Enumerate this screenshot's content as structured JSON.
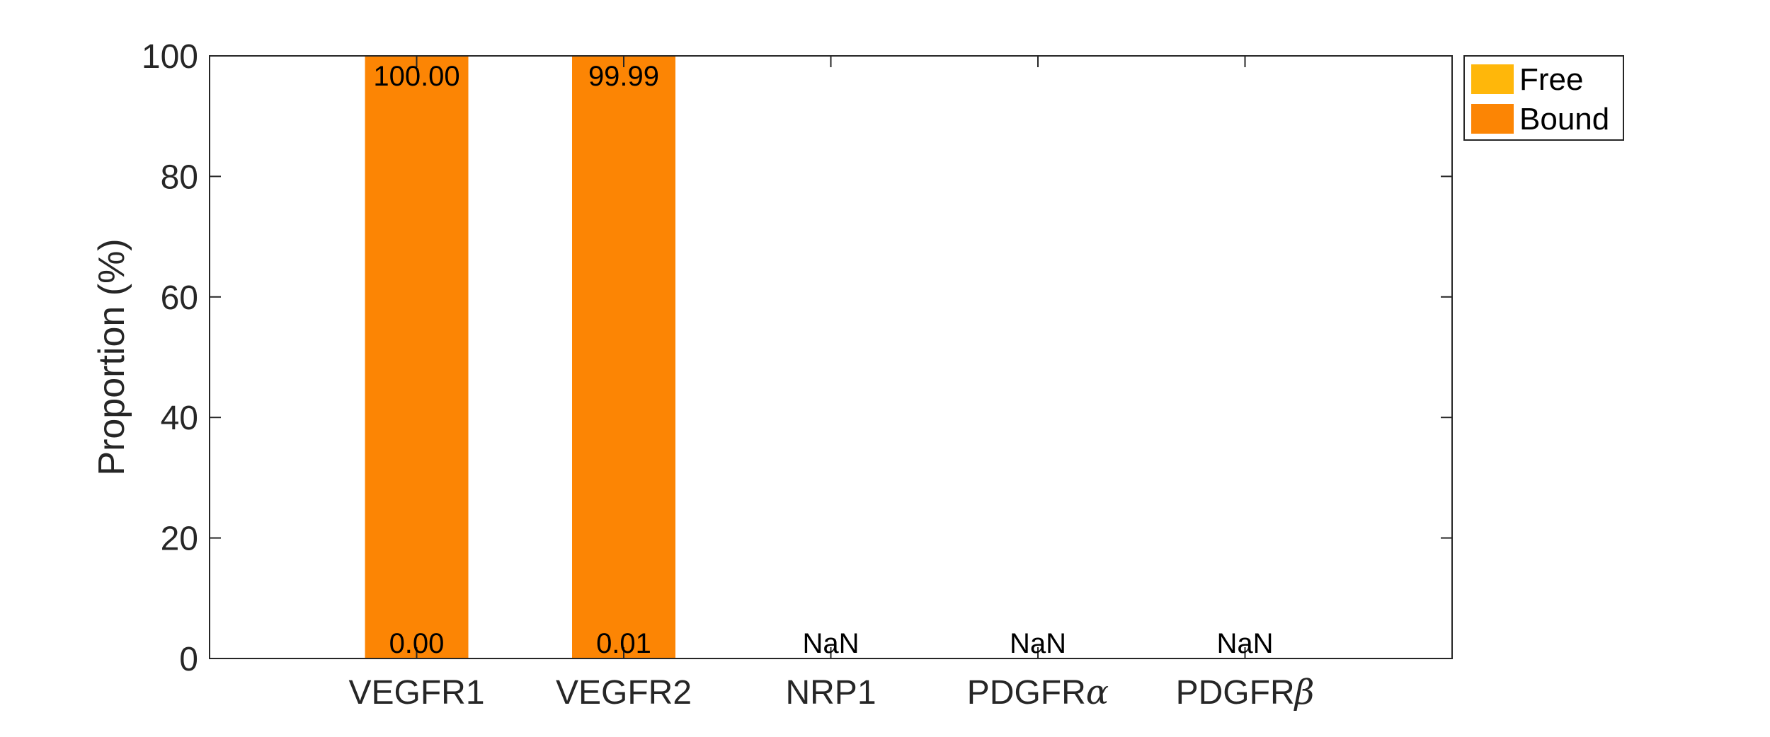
{
  "chart_data": {
    "type": "bar",
    "stacked": true,
    "categories": [
      "VEGFR1",
      "VEGFR2",
      "NRP1",
      "PDGFRα",
      "PDGFRβ"
    ],
    "category_labels": [
      {
        "base": "VEGFR1",
        "greek": ""
      },
      {
        "base": "VEGFR2",
        "greek": ""
      },
      {
        "base": "NRP1",
        "greek": ""
      },
      {
        "base": "PDGFR",
        "greek": "α"
      },
      {
        "base": "PDGFR",
        "greek": "β"
      }
    ],
    "series": [
      {
        "name": "Free",
        "color": "#FFB70A",
        "values": [
          0.0,
          0.01,
          null,
          null,
          null
        ],
        "labels": [
          "0.00",
          "0.01",
          "NaN",
          "NaN",
          "NaN"
        ]
      },
      {
        "name": "Bound",
        "color": "#FC8504",
        "values": [
          100.0,
          99.99,
          null,
          null,
          null
        ],
        "labels": [
          "100.00",
          "99.99",
          "",
          "",
          ""
        ]
      }
    ],
    "ylabel": "Proportion (%)",
    "xlabel": "",
    "title": "",
    "ylim": [
      0,
      100
    ],
    "yticks": [
      0,
      20,
      40,
      60,
      80,
      100
    ],
    "grid": false,
    "legend_position": "outside-top-right"
  }
}
